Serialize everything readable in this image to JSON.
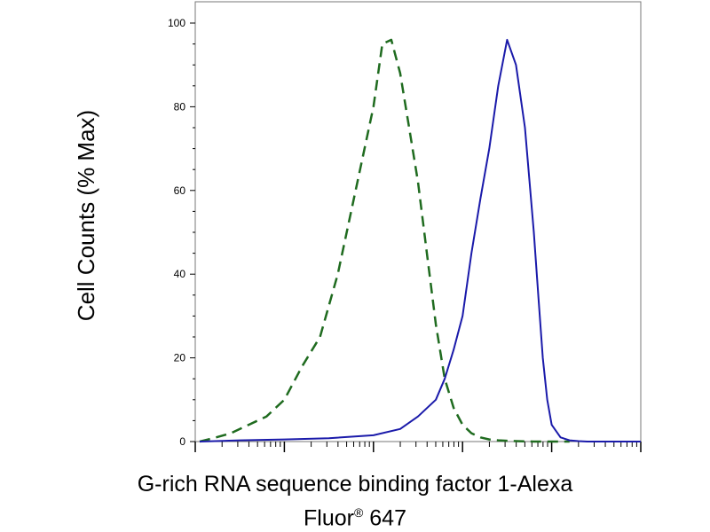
{
  "chart_data": {
    "type": "line",
    "title": "",
    "ylabel": "Cell Counts (% Max)",
    "xlabel_line1": "G-rich RNA sequence binding factor 1-Alexa",
    "xlabel_line2_text": "Fluor",
    "xlabel_line2_reg": "®",
    "xlabel_line2_num": "647",
    "x_scale": "log",
    "xlim_decades": [
      0,
      5
    ],
    "ylim": [
      0,
      100
    ],
    "y_ticks": [
      0,
      20,
      40,
      60,
      80,
      100
    ],
    "y_tick_labels": [
      "0",
      "20",
      "40",
      "60",
      "80",
      "100"
    ],
    "grid": false,
    "series": [
      {
        "style": "dashed",
        "color": "#1f6b1f",
        "x_decades": [
          0.05,
          0.2,
          0.4,
          0.6,
          0.8,
          1.0,
          1.2,
          1.4,
          1.6,
          1.8,
          2.0,
          2.1,
          2.2,
          2.3,
          2.4,
          2.5,
          2.6,
          2.7,
          2.8,
          2.9,
          3.0,
          3.1,
          3.2,
          3.3,
          3.4,
          3.5,
          3.6,
          3.8,
          4.0,
          4.2
        ],
        "values": [
          0,
          0.8,
          2,
          4,
          6,
          10,
          18,
          25,
          40,
          60,
          80,
          95,
          96,
          88,
          75,
          62,
          45,
          28,
          15,
          8,
          4,
          2,
          1,
          0.5,
          0.3,
          0.2,
          0.1,
          0,
          0,
          0
        ]
      },
      {
        "style": "solid",
        "color": "#1a1aaa",
        "x_decades": [
          0.05,
          0.5,
          1.0,
          1.5,
          2.0,
          2.3,
          2.5,
          2.7,
          2.8,
          2.9,
          3.0,
          3.1,
          3.2,
          3.3,
          3.4,
          3.5,
          3.6,
          3.7,
          3.8,
          3.85,
          3.9,
          3.95,
          4.0,
          4.1,
          4.2,
          4.3,
          4.4,
          4.6,
          4.8,
          5.0
        ],
        "values": [
          0,
          0.3,
          0.5,
          0.8,
          1.5,
          3,
          6,
          10,
          15,
          22,
          30,
          45,
          58,
          70,
          85,
          96,
          90,
          75,
          50,
          35,
          20,
          10,
          4,
          1,
          0.3,
          0.1,
          0,
          0,
          0,
          0
        ]
      }
    ]
  }
}
